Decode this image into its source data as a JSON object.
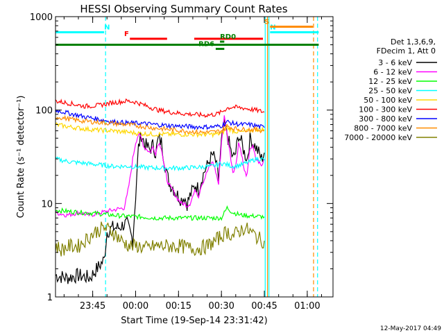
{
  "chart_data": {
    "type": "line",
    "title": "HESSI Observing Summary Count Rates",
    "xlabel": "Start Time (19-Sep-14 23:31:42)",
    "ylabel": "Count Rate (s⁻¹ detector⁻¹)",
    "yscale": "log",
    "ylim": [
      1,
      1000
    ],
    "xlim_min": [
      0,
      97
    ],
    "x_ticks": [
      {
        "t": 13,
        "label": "23:45"
      },
      {
        "t": 28,
        "label": "00:00"
      },
      {
        "t": 43,
        "label": "00:15"
      },
      {
        "t": 58,
        "label": "00:30"
      },
      {
        "t": 73,
        "label": "00:45"
      },
      {
        "t": 88,
        "label": "01:00"
      }
    ],
    "y_ticks": [
      {
        "v": 1,
        "label": "1"
      },
      {
        "v": 10,
        "label": "10"
      },
      {
        "v": 100,
        "label": "100"
      },
      {
        "v": 1000,
        "label": "1000"
      }
    ],
    "legend_header": [
      "Det 1,3,6,9,",
      "FDecim 1, Att 0"
    ],
    "series": [
      {
        "name": "3 - 6 keV",
        "color": "#000000",
        "x": [
          0,
          4,
          8,
          12,
          17,
          18,
          20,
          22,
          24,
          25,
          26,
          27,
          28,
          29,
          30,
          31,
          32,
          33,
          34,
          35,
          36,
          37,
          38,
          39,
          40,
          41,
          42,
          43,
          44,
          45,
          46,
          47,
          48,
          49,
          50,
          51,
          52,
          53,
          54,
          55,
          56,
          57,
          58,
          59,
          60,
          61,
          62,
          63,
          64,
          65,
          66,
          67,
          68,
          69,
          70,
          71,
          72,
          73
        ],
        "y": [
          1.7,
          1.6,
          1.7,
          1.6,
          2.5,
          5,
          5.5,
          5.5,
          6,
          6,
          5,
          4,
          12,
          40,
          55,
          45,
          40,
          38,
          42,
          35,
          50,
          45,
          30,
          20,
          16,
          15,
          13,
          12,
          11,
          12,
          10,
          12,
          14,
          16,
          14,
          18,
          22,
          25,
          30,
          33,
          28,
          18,
          45,
          70,
          55,
          40,
          30,
          35,
          55,
          45,
          35,
          30,
          50,
          45,
          40,
          35,
          30,
          35
        ]
      },
      {
        "name": "6 - 12 keV",
        "color": "#ff00ff",
        "x": [
          0,
          4,
          8,
          12,
          16,
          20,
          24,
          25,
          26,
          27,
          28,
          29,
          30,
          31,
          32,
          33,
          34,
          35,
          36,
          37,
          38,
          39,
          40,
          41,
          42,
          43,
          44,
          45,
          46,
          47,
          48,
          49,
          50,
          51,
          52,
          53,
          54,
          55,
          56,
          57,
          58,
          59,
          60,
          61,
          62,
          63,
          64,
          65,
          66,
          67,
          68,
          69,
          70,
          71,
          72,
          73
        ],
        "y": [
          8,
          7.5,
          8,
          7.5,
          8,
          8.5,
          9,
          12,
          18,
          30,
          45,
          55,
          50,
          40,
          38,
          35,
          40,
          35,
          45,
          40,
          25,
          18,
          15,
          14,
          12,
          11,
          10,
          10,
          9.5,
          10,
          12,
          14,
          12,
          16,
          18,
          22,
          25,
          28,
          22,
          16,
          45,
          85,
          55,
          35,
          22,
          25,
          45,
          35,
          22,
          20,
          40,
          40,
          30,
          28,
          25,
          30
        ]
      },
      {
        "name": "12 - 25 keV",
        "color": "#00ff00",
        "x": [
          0,
          5,
          10,
          15,
          20,
          25,
          30,
          35,
          40,
          45,
          50,
          55,
          58,
          60,
          62,
          65,
          70,
          73
        ],
        "y": [
          8.5,
          8.2,
          8,
          7.8,
          7.5,
          7.3,
          7.2,
          7,
          7,
          7,
          7,
          7,
          7,
          9,
          8,
          7.5,
          7.3,
          7.2
        ]
      },
      {
        "name": "25 - 50 keV",
        "color": "#00ffff",
        "x": [
          0,
          5,
          10,
          15,
          20,
          25,
          30,
          35,
          40,
          45,
          50,
          55,
          58,
          60,
          62,
          65,
          68,
          70,
          72,
          73
        ],
        "y": [
          30,
          28,
          27,
          26,
          25,
          25,
          24.5,
          24,
          24,
          24,
          24.5,
          25,
          27,
          26,
          25,
          26,
          28,
          30,
          30,
          29
        ]
      },
      {
        "name": "50 - 100 keV",
        "color": "#ffd700",
        "x": [
          0,
          5,
          10,
          15,
          20,
          25,
          30,
          35,
          40,
          45,
          50,
          55,
          58,
          60,
          62,
          65,
          68,
          70,
          73
        ],
        "y": [
          70,
          66,
          63,
          61,
          60,
          58,
          56,
          55,
          55,
          55,
          55,
          55,
          56,
          65,
          60,
          58,
          60,
          62,
          62
        ]
      },
      {
        "name": "100 - 300 keV",
        "color": "#ff0000",
        "x": [
          0,
          5,
          10,
          15,
          20,
          25,
          28,
          32,
          36,
          40,
          44,
          48,
          52,
          56,
          58,
          60,
          62,
          64,
          66,
          68,
          70,
          73
        ],
        "y": [
          125,
          118,
          110,
          112,
          120,
          125,
          122,
          110,
          100,
          95,
          92,
          90,
          88,
          90,
          95,
          105,
          108,
          106,
          105,
          102,
          100,
          95
        ]
      },
      {
        "name": "300 - 800 keV",
        "color": "#0000ff",
        "x": [
          0,
          5,
          10,
          15,
          20,
          25,
          30,
          35,
          40,
          45,
          50,
          55,
          58,
          60,
          62,
          65,
          68,
          70,
          73
        ],
        "y": [
          100,
          92,
          85,
          80,
          75,
          73,
          72,
          70,
          68,
          67,
          66,
          66,
          68,
          75,
          72,
          70,
          70,
          68,
          65
        ]
      },
      {
        "name": "800 - 7000 keV",
        "color": "#ff8c00",
        "x": [
          0,
          5,
          10,
          15,
          20,
          25,
          30,
          35,
          40,
          45,
          50,
          55,
          58,
          60,
          62,
          65,
          68,
          70,
          73
        ],
        "y": [
          85,
          80,
          76,
          74,
          72,
          70,
          67,
          64,
          62,
          60,
          58,
          58,
          60,
          68,
          64,
          62,
          62,
          62,
          60
        ]
      },
      {
        "name": "7000 - 20000 keV",
        "color": "#808000",
        "x": [
          0,
          2,
          5,
          8,
          11,
          14,
          17,
          20,
          23,
          26,
          29,
          32,
          35,
          38,
          41,
          44,
          47,
          50,
          53,
          56,
          58,
          60,
          62,
          64,
          66,
          68,
          70,
          72,
          73
        ],
        "y": [
          3.5,
          3.2,
          3.5,
          3.5,
          4.2,
          5,
          5.5,
          5,
          4,
          3.5,
          3.5,
          3.3,
          3.5,
          3.5,
          3.5,
          3.5,
          3.3,
          3.3,
          3.5,
          4,
          4.5,
          5,
          4.5,
          5,
          5.5,
          5,
          4.5,
          4,
          4
        ]
      }
    ],
    "state_bars": [
      {
        "label": "N",
        "color": "#00ffff",
        "y_level": 680,
        "x0": 0,
        "x1": 17,
        "label_x": 17
      },
      {
        "label": "N",
        "color": "#00ffff",
        "y_level": 680,
        "x0": 75,
        "x1": 92,
        "label_x": null
      },
      {
        "label": "S",
        "color": "#ff8c00",
        "y_level": 780,
        "x0": 75,
        "x1": 90,
        "label_x": 73
      },
      {
        "label": "F",
        "color": "#ff0000",
        "y_level": 580,
        "x0": 26,
        "x1": 39,
        "label_x": 24
      },
      {
        "label": "",
        "color": "#ff0000",
        "y_level": 580,
        "x0": 48.5,
        "x1": 72.5,
        "label_x": null
      },
      {
        "label": "RD0",
        "color": "#008000",
        "y_level": 540,
        "x0": 57.5,
        "x1": 59,
        "label_x": 57.5
      },
      {
        "label": "RD6",
        "color": "#008000",
        "y_level": 452,
        "x0": 56,
        "x1": 59,
        "label_x": 50
      },
      {
        "label": "",
        "color": "#008000",
        "y_level": 500,
        "x0": 0,
        "x1": 92,
        "label_x": null
      }
    ],
    "vlines": [
      {
        "t": 17.5,
        "color": "#00ffff",
        "style": "dashed"
      },
      {
        "t": 73.3,
        "color": "#00ffff",
        "style": "solid"
      },
      {
        "t": 74.1,
        "color": "#ff8c00",
        "style": "solid"
      },
      {
        "t": 74.6,
        "color": "#00ffff",
        "style": "solid"
      },
      {
        "t": 90.2,
        "color": "#ff8c00",
        "style": "dashed"
      },
      {
        "t": 91.6,
        "color": "#00ffff",
        "style": "dashed"
      }
    ],
    "grid": false
  },
  "timestamp": "12-May-2017 04:49"
}
